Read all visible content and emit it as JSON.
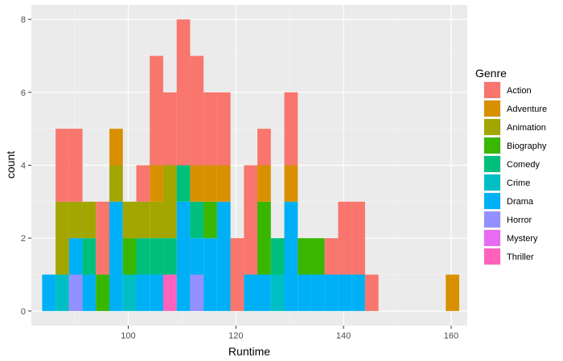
{
  "chart_data": {
    "type": "bar",
    "subtype": "stacked-histogram",
    "xlabel": "Runtime",
    "ylabel": "count",
    "xlim": [
      82,
      163
    ],
    "ylim": [
      -0.4,
      8.4
    ],
    "xticks": [
      100,
      120,
      140,
      160
    ],
    "yticks": [
      0,
      2,
      4,
      6,
      8
    ],
    "grid": true,
    "legend": {
      "title": "Genre",
      "position": "right"
    },
    "bin_width": 2.5,
    "series": [
      {
        "name": "Action",
        "color": "#F8766D"
      },
      {
        "name": "Adventure",
        "color": "#D89000"
      },
      {
        "name": "Animation",
        "color": "#A3A500"
      },
      {
        "name": "Biography",
        "color": "#39B600"
      },
      {
        "name": "Comedy",
        "color": "#00BF7D"
      },
      {
        "name": "Crime",
        "color": "#00BFC4"
      },
      {
        "name": "Drama",
        "color": "#00B0F6"
      },
      {
        "name": "Horror",
        "color": "#9590FF"
      },
      {
        "name": "Mystery",
        "color": "#E76BF3"
      },
      {
        "name": "Thriller",
        "color": "#FF62BC"
      }
    ],
    "bins": [
      {
        "x0": 84.0,
        "counts": {
          "Drama": 1
        }
      },
      {
        "x0": 86.5,
        "counts": {
          "Crime": 1,
          "Animation": 2,
          "Action": 2
        }
      },
      {
        "x0": 89.0,
        "counts": {
          "Drama": 1,
          "Horror": 1,
          "Animation": 1,
          "Action": 2
        }
      },
      {
        "x0": 91.5,
        "counts": {
          "Drama": 1,
          "Comedy": 1,
          "Animation": 1
        }
      },
      {
        "x0": 94.0,
        "counts": {
          "Biography": 1,
          "Action": 2
        }
      },
      {
        "x0": 96.5,
        "counts": {
          "Drama": 3,
          "Animation": 1,
          "Adventure": 1
        }
      },
      {
        "x0": 99.0,
        "counts": {
          "Crime": 1,
          "Biography": 1,
          "Animation": 1
        }
      },
      {
        "x0": 101.5,
        "counts": {
          "Drama": 1,
          "Comedy": 1,
          "Animation": 1,
          "Action": 1
        }
      },
      {
        "x0": 104.0,
        "counts": {
          "Drama": 1,
          "Comedy": 1,
          "Animation": 1,
          "Adventure": 1,
          "Action": 3
        }
      },
      {
        "x0": 106.5,
        "counts": {
          "Thriller": 1,
          "Comedy": 1,
          "Animation": 2,
          "Action": 2
        }
      },
      {
        "x0": 109.0,
        "counts": {
          "Drama": 3,
          "Comedy": 1,
          "Action": 4
        }
      },
      {
        "x0": 111.5,
        "counts": {
          "Drama": 1,
          "Horror": 1,
          "Comedy": 1,
          "Adventure": 1,
          "Action": 3
        }
      },
      {
        "x0": 114.0,
        "counts": {
          "Drama": 2,
          "Biography": 1,
          "Adventure": 1,
          "Action": 2
        }
      },
      {
        "x0": 116.5,
        "counts": {
          "Drama": 3,
          "Adventure": 1,
          "Action": 2
        }
      },
      {
        "x0": 119.0,
        "counts": {
          "Action": 2
        }
      },
      {
        "x0": 121.5,
        "counts": {
          "Drama": 1,
          "Action": 3
        }
      },
      {
        "x0": 124.0,
        "counts": {
          "Drama": 1,
          "Biography": 2,
          "Adventure": 1,
          "Action": 1
        }
      },
      {
        "x0": 126.5,
        "counts": {
          "Crime": 1,
          "Comedy": 1
        }
      },
      {
        "x0": 129.0,
        "counts": {
          "Drama": 3,
          "Adventure": 1,
          "Action": 2
        }
      },
      {
        "x0": 131.5,
        "counts": {
          "Drama": 1,
          "Biography": 1
        }
      },
      {
        "x0": 134.0,
        "counts": {
          "Drama": 1,
          "Biography": 1
        }
      },
      {
        "x0": 136.5,
        "counts": {
          "Drama": 1,
          "Action": 1
        }
      },
      {
        "x0": 139.0,
        "counts": {
          "Drama": 1,
          "Action": 2
        }
      },
      {
        "x0": 141.5,
        "counts": {
          "Drama": 1,
          "Action": 2
        }
      },
      {
        "x0": 144.0,
        "counts": {
          "Action": 1
        }
      },
      {
        "x0": 159.0,
        "counts": {
          "Adventure": 1
        }
      }
    ]
  }
}
